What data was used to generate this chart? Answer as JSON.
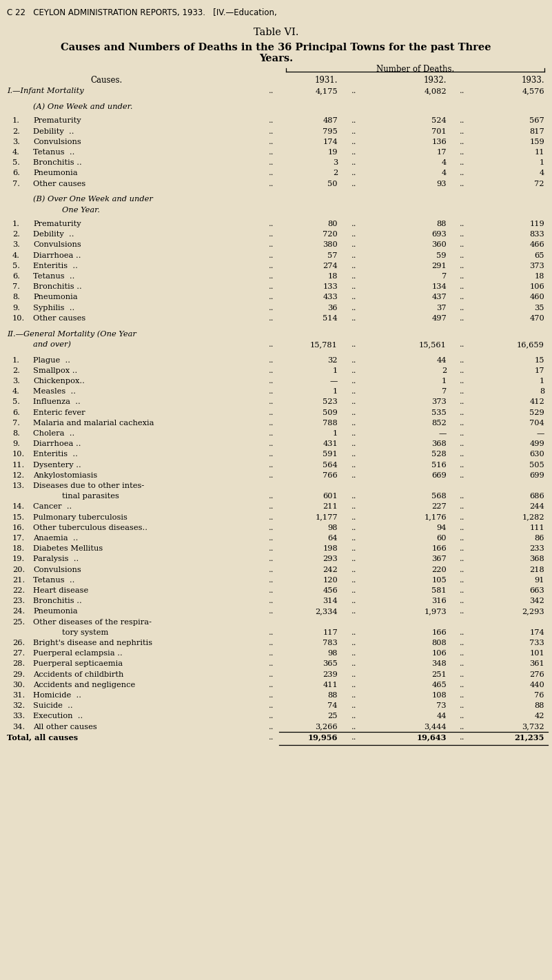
{
  "header_line1": "C 22   CEYLON ADMINISTRATION REPORTS, 1933.   [IV.—Education,",
  "title1": "Table VI.",
  "title2": "Causes and Numbers of Deaths in the 36 Principal Towns for the past Three",
  "title3": "Years.",
  "col_header_group": "Number of Deaths.",
  "col_years": [
    "1931.",
    "1932.",
    "1933."
  ],
  "col_causes": "Causes.",
  "bg_color": "#e8dfc8",
  "rows": [
    {
      "indent": 0,
      "italic": true,
      "label": "I.—Infant Mortality",
      "dots": true,
      "v1931": "4,175",
      "v1932": "4,082",
      "v1933": "4,576",
      "extra_space_after": true
    },
    {
      "indent": 1,
      "italic": true,
      "label": "(A) One Week and under.",
      "section": true,
      "extra_space_after": true
    },
    {
      "indent": 1,
      "num": "1.",
      "label": "Prematurity",
      "dots": true,
      "v1931": "487",
      "v1932": "524",
      "v1933": "567"
    },
    {
      "indent": 1,
      "num": "2.",
      "label": "Debility  ..",
      "dots": true,
      "v1931": "795",
      "v1932": "701",
      "v1933": "817"
    },
    {
      "indent": 1,
      "num": "3.",
      "label": "Convulsions",
      "dots": true,
      "v1931": "174",
      "v1932": "136",
      "v1933": "159"
    },
    {
      "indent": 1,
      "num": "4.",
      "label": "Tetanus  ..",
      "dots": true,
      "v1931": "19",
      "v1932": "17",
      "v1933": "11"
    },
    {
      "indent": 1,
      "num": "5.",
      "label": "Bronchitis ..",
      "dots": true,
      "v1931": "3",
      "v1932": "4",
      "v1933": "1"
    },
    {
      "indent": 1,
      "num": "6.",
      "label": "Pneumonia",
      "dots": true,
      "v1931": "2",
      "v1932": "4",
      "v1933": "4"
    },
    {
      "indent": 1,
      "num": "7.",
      "label": "Other causes",
      "dots": true,
      "v1931": "50",
      "v1932": "93",
      "v1933": "72",
      "extra_space_after": true
    },
    {
      "indent": 1,
      "italic": true,
      "label": "(B) Over One Week and under",
      "section": true
    },
    {
      "indent": 2,
      "italic": true,
      "label": "One Year.",
      "section": true,
      "extra_space_after": true
    },
    {
      "indent": 1,
      "num": "1.",
      "label": "Prematurity",
      "dots": true,
      "v1931": "80",
      "v1932": "88",
      "v1933": "119"
    },
    {
      "indent": 1,
      "num": "2.",
      "label": "Debility  ..",
      "dots": true,
      "v1931": "720",
      "v1932": "693",
      "v1933": "833"
    },
    {
      "indent": 1,
      "num": "3.",
      "label": "Convulsions",
      "dots": true,
      "v1931": "380",
      "v1932": "360",
      "v1933": "466"
    },
    {
      "indent": 1,
      "num": "4.",
      "label": "Diarrhoea ..",
      "dots": true,
      "v1931": "57",
      "v1932": "59",
      "v1933": "65"
    },
    {
      "indent": 1,
      "num": "5.",
      "label": "Enteritis  ..",
      "dots": true,
      "v1931": "274",
      "v1932": "291",
      "v1933": "373"
    },
    {
      "indent": 1,
      "num": "6.",
      "label": "Tetanus  ..",
      "dots": true,
      "v1931": "18",
      "v1932": "7",
      "v1933": "18"
    },
    {
      "indent": 1,
      "num": "7.",
      "label": "Bronchitis ..",
      "dots": true,
      "v1931": "133",
      "v1932": "134",
      "v1933": "106"
    },
    {
      "indent": 1,
      "num": "8.",
      "label": "Pneumonia",
      "dots": true,
      "v1931": "433",
      "v1932": "437",
      "v1933": "460"
    },
    {
      "indent": 1,
      "num": "9.",
      "label": "Syphilis  ..",
      "dots": true,
      "v1931": "36",
      "v1932": "37",
      "v1933": "35"
    },
    {
      "indent": 1,
      "num": "10.",
      "label": "Other causes",
      "dots": true,
      "v1931": "514",
      "v1932": "497",
      "v1933": "470",
      "extra_space_after": true
    },
    {
      "indent": 0,
      "italic": true,
      "label": "II.—General Mortality (One Year",
      "section": true
    },
    {
      "indent": 1,
      "italic": true,
      "label": "and over)",
      "dots": true,
      "v1931": "15,781",
      "v1932": "15,561",
      "v1933": "16,659",
      "extra_space_after": true
    },
    {
      "indent": 1,
      "num": "1.",
      "label": "Plague  ..",
      "dots": true,
      "v1931": "32",
      "v1932": "44",
      "v1933": "15"
    },
    {
      "indent": 1,
      "num": "2.",
      "label": "Smallpox ..",
      "dots": true,
      "v1931": "1",
      "v1932": "2",
      "v1933": "17"
    },
    {
      "indent": 1,
      "num": "3.",
      "label": "Chickenpox..",
      "dots": true,
      "v1931": "—",
      "v1932": "1",
      "v1933": "1"
    },
    {
      "indent": 1,
      "num": "4.",
      "label": "Measles  ..",
      "dots": true,
      "v1931": "1",
      "v1932": "7",
      "v1933": "8"
    },
    {
      "indent": 1,
      "num": "5.",
      "label": "Influenza  ..",
      "dots": true,
      "v1931": "523",
      "v1932": "373",
      "v1933": "412"
    },
    {
      "indent": 1,
      "num": "6.",
      "label": "Enteric fever",
      "dots": true,
      "v1931": "509",
      "v1932": "535",
      "v1933": "529"
    },
    {
      "indent": 1,
      "num": "7.",
      "label": "Malaria and malarial cachexia",
      "dots": true,
      "v1931": "788",
      "v1932": "852",
      "v1933": "704"
    },
    {
      "indent": 1,
      "num": "8.",
      "label": "Cholera  ..",
      "dots": true,
      "v1931": "1",
      "v1932": "—",
      "v1933": "—"
    },
    {
      "indent": 1,
      "num": "9.",
      "label": "Diarrhoea ..",
      "dots": true,
      "v1931": "431",
      "v1932": "368",
      "v1933": "499"
    },
    {
      "indent": 1,
      "num": "10.",
      "label": "Enteritis  ..",
      "dots": true,
      "v1931": "591",
      "v1932": "528",
      "v1933": "630"
    },
    {
      "indent": 1,
      "num": "11.",
      "label": "Dysentery ..",
      "dots": true,
      "v1931": "564",
      "v1932": "516",
      "v1933": "505"
    },
    {
      "indent": 1,
      "num": "12.",
      "label": "Ankylostomiasis",
      "dots": true,
      "v1931": "766",
      "v1932": "669",
      "v1933": "699"
    },
    {
      "indent": 1,
      "num": "13.",
      "label": "Diseases due to other intes-",
      "cont_next": true
    },
    {
      "indent": 2,
      "label": "tinal parasites",
      "dots": true,
      "v1931": "601",
      "v1932": "568",
      "v1933": "686"
    },
    {
      "indent": 1,
      "num": "14.",
      "label": "Cancer  ..",
      "dots": true,
      "v1931": "211",
      "v1932": "227",
      "v1933": "244"
    },
    {
      "indent": 1,
      "num": "15.",
      "label": "Pulmonary tuberculosis",
      "dots": true,
      "v1931": "1,177",
      "v1932": "1,176",
      "v1933": "1,282"
    },
    {
      "indent": 1,
      "num": "16.",
      "label": "Other tuberculous diseases..",
      "dots": true,
      "v1931": "98",
      "v1932": "94",
      "v1933": "111"
    },
    {
      "indent": 1,
      "num": "17.",
      "label": "Anaemia  ..",
      "dots": true,
      "v1931": "64",
      "v1932": "60",
      "v1933": "86"
    },
    {
      "indent": 1,
      "num": "18.",
      "label": "Diabetes Mellitus",
      "dots": true,
      "v1931": "198",
      "v1932": "166",
      "v1933": "233"
    },
    {
      "indent": 1,
      "num": "19.",
      "label": "Paralysis  ..",
      "dots": true,
      "v1931": "293",
      "v1932": "367",
      "v1933": "368"
    },
    {
      "indent": 1,
      "num": "20.",
      "label": "Convulsions",
      "dots": true,
      "v1931": "242",
      "v1932": "220",
      "v1933": "218"
    },
    {
      "indent": 1,
      "num": "21.",
      "label": "Tetanus  ..",
      "dots": true,
      "v1931": "120",
      "v1932": "105",
      "v1933": "91"
    },
    {
      "indent": 1,
      "num": "22.",
      "label": "Heart disease",
      "dots": true,
      "v1931": "456",
      "v1932": "581",
      "v1933": "663"
    },
    {
      "indent": 1,
      "num": "23.",
      "label": "Bronchitis ..",
      "dots": true,
      "v1931": "314",
      "v1932": "316",
      "v1933": "342"
    },
    {
      "indent": 1,
      "num": "24.",
      "label": "Pneumonia",
      "dots": true,
      "v1931": "2,334",
      "v1932": "1,973",
      "v1933": "2,293"
    },
    {
      "indent": 1,
      "num": "25.",
      "label": "Other diseases of the respira-",
      "cont_next": true
    },
    {
      "indent": 2,
      "label": "tory system",
      "dots": true,
      "v1931": "117",
      "v1932": "166",
      "v1933": "174"
    },
    {
      "indent": 1,
      "num": "26.",
      "label": "Bright's disease and nephritis",
      "dots": true,
      "v1931": "783",
      "v1932": "808",
      "v1933": "733"
    },
    {
      "indent": 1,
      "num": "27.",
      "label": "Puerperal eclampsia ..",
      "dots": true,
      "v1931": "98",
      "v1932": "106",
      "v1933": "101"
    },
    {
      "indent": 1,
      "num": "28.",
      "label": "Puerperal septicaemia",
      "dots": true,
      "v1931": "365",
      "v1932": "348",
      "v1933": "361"
    },
    {
      "indent": 1,
      "num": "29.",
      "label": "Accidents of childbirth",
      "dots": true,
      "v1931": "239",
      "v1932": "251",
      "v1933": "276"
    },
    {
      "indent": 1,
      "num": "30.",
      "label": "Accidents and negligence",
      "dots": true,
      "v1931": "411",
      "v1932": "465",
      "v1933": "440"
    },
    {
      "indent": 1,
      "num": "31.",
      "label": "Homicide  ..",
      "dots": true,
      "v1931": "88",
      "v1932": "108",
      "v1933": "76"
    },
    {
      "indent": 1,
      "num": "32.",
      "label": "Suicide  ..",
      "dots": true,
      "v1931": "74",
      "v1932": "73",
      "v1933": "88"
    },
    {
      "indent": 1,
      "num": "33.",
      "label": "Execution  ..",
      "dots": true,
      "v1931": "25",
      "v1932": "44",
      "v1933": "42"
    },
    {
      "indent": 1,
      "num": "34.",
      "label": "All other causes",
      "dots": true,
      "v1931": "3,266",
      "v1932": "3,444",
      "v1933": "3,732"
    },
    {
      "indent": 0,
      "bold": true,
      "label": "Total, all causes",
      "dots": true,
      "v1931": "19,956",
      "v1932": "19,643",
      "v1933": "21,235",
      "total_row": true
    }
  ]
}
